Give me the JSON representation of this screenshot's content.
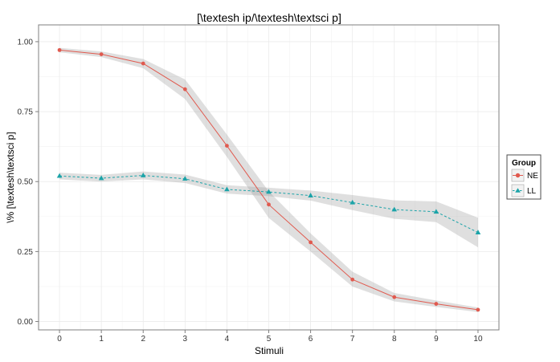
{
  "chart_data": {
    "type": "line",
    "title": "[\\textesh ip/\\textesh\\textsci p]",
    "xlabel": "Stimuli",
    "ylabel": "\\% [\\textesh\\textsci p]",
    "x": [
      0,
      1,
      2,
      3,
      4,
      5,
      6,
      7,
      8,
      9,
      10
    ],
    "xlim": [
      -0.5,
      10.5
    ],
    "ylim": [
      -0.03,
      1.06
    ],
    "xticks": [
      "0",
      "1",
      "2",
      "3",
      "4",
      "5",
      "6",
      "7",
      "8",
      "9",
      "10"
    ],
    "yticks": [
      0.0,
      0.25,
      0.5,
      0.75,
      1.0
    ],
    "ytick_labels": [
      "0.00",
      "0.25",
      "0.50",
      "0.75",
      "1.00"
    ],
    "grid": true,
    "confidence_bands": true,
    "legend": {
      "title": "Group",
      "placement": "right"
    },
    "series": [
      {
        "name": "NE",
        "color": "#e05a4f",
        "marker": "circle",
        "linestyle": "solid",
        "values": [
          0.97,
          0.955,
          0.922,
          0.83,
          0.628,
          0.418,
          0.283,
          0.15,
          0.087,
          0.063,
          0.042
        ],
        "lower": [
          0.962,
          0.945,
          0.905,
          0.795,
          0.588,
          0.37,
          0.25,
          0.125,
          0.072,
          0.052,
          0.034
        ],
        "upper": [
          0.978,
          0.965,
          0.938,
          0.865,
          0.668,
          0.465,
          0.315,
          0.178,
          0.102,
          0.075,
          0.05
        ]
      },
      {
        "name": "LL",
        "color": "#1ba3a8",
        "marker": "triangle",
        "linestyle": "dashed",
        "values": [
          0.52,
          0.512,
          0.522,
          0.51,
          0.472,
          0.463,
          0.45,
          0.425,
          0.4,
          0.392,
          0.318
        ],
        "lower": [
          0.508,
          0.5,
          0.508,
          0.495,
          0.457,
          0.448,
          0.432,
          0.398,
          0.367,
          0.355,
          0.265
        ],
        "upper": [
          0.532,
          0.524,
          0.536,
          0.525,
          0.487,
          0.478,
          0.468,
          0.452,
          0.433,
          0.429,
          0.371
        ]
      }
    ]
  }
}
